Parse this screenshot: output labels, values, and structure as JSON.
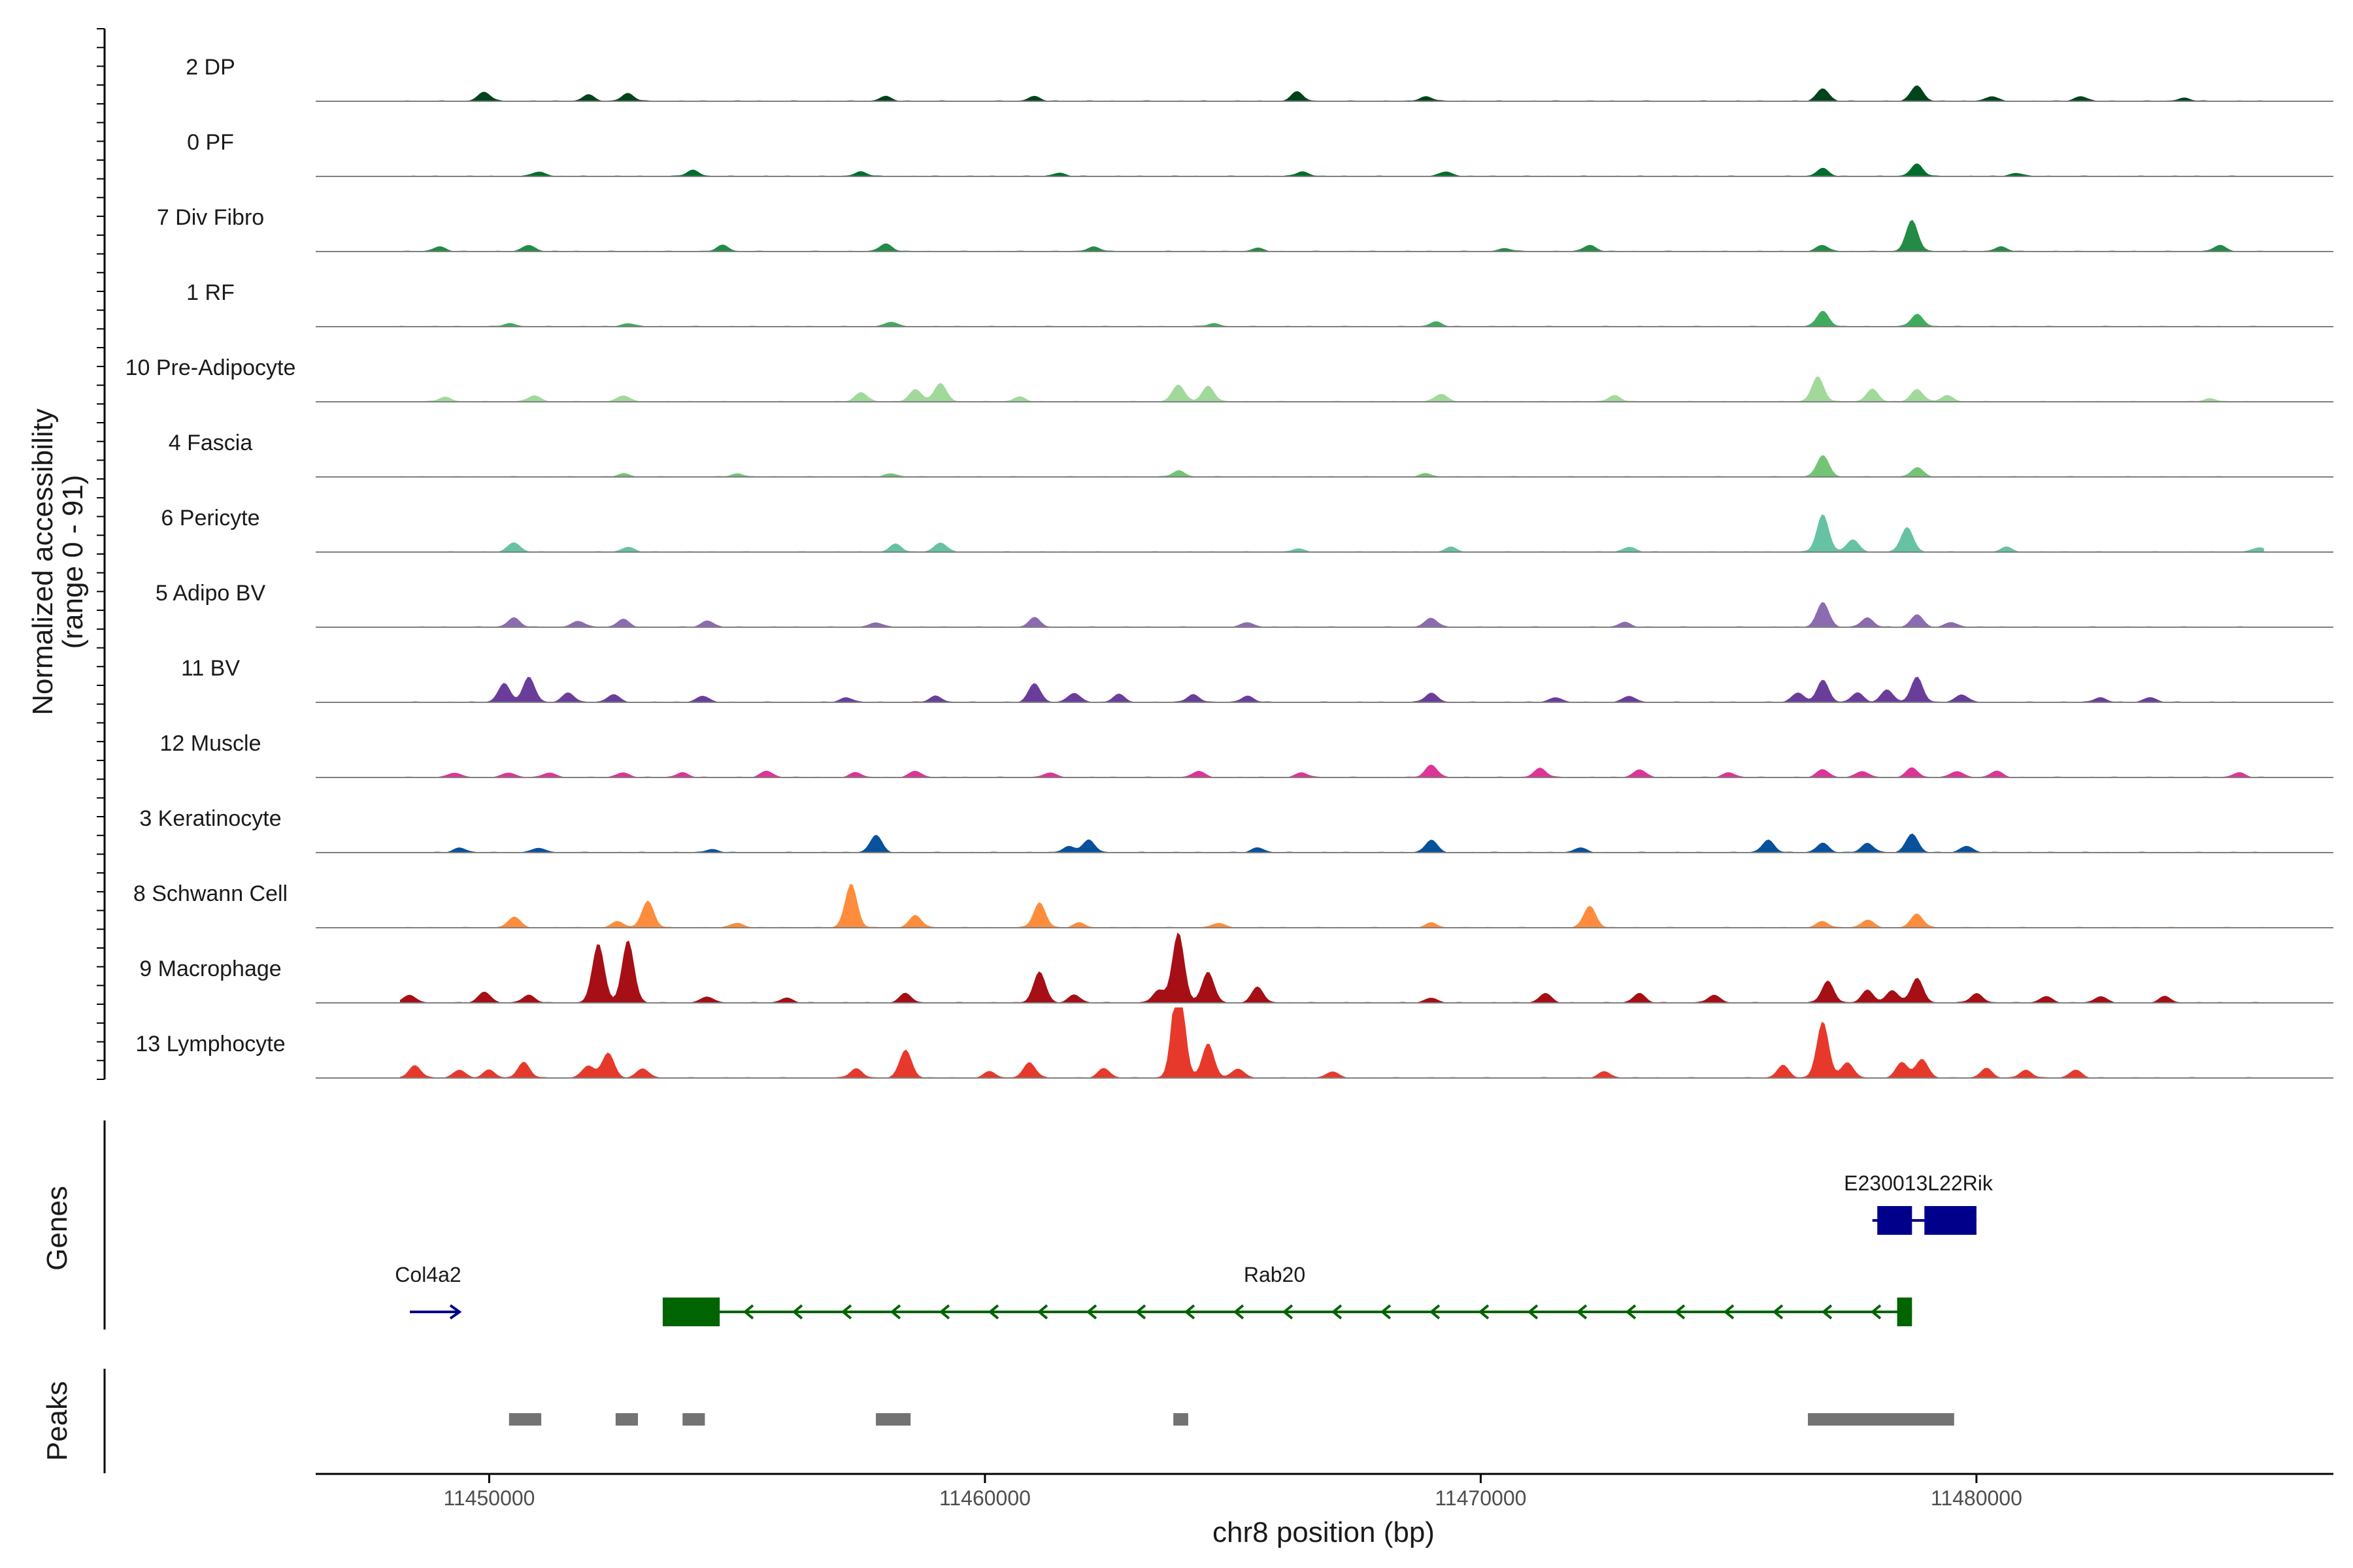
{
  "chart_data": {
    "type": "genome-track",
    "ylabel_line1": "Normalized accessibility",
    "ylabel_line2": "(range 0 - 91)",
    "y_range": [
      0,
      91
    ],
    "xlabel": "chr8 position (bp)",
    "xlim": [
      11446500,
      11487200
    ],
    "x_ticks": [
      11450000,
      11460000,
      11470000,
      11480000
    ],
    "x_tick_labels": [
      "11450000",
      "11460000",
      "11470000",
      "11480000"
    ],
    "tracks": [
      {
        "label": "2 DP",
        "color": "#00441b",
        "peaks": [
          [
            11449900,
            6
          ],
          [
            11452000,
            4
          ],
          [
            11452800,
            5
          ],
          [
            11458000,
            3
          ],
          [
            11461000,
            3
          ],
          [
            11466300,
            6
          ],
          [
            11468900,
            3
          ],
          [
            11476900,
            8
          ],
          [
            11478800,
            10
          ],
          [
            11480300,
            3
          ],
          [
            11482100,
            3
          ],
          [
            11484200,
            2
          ]
        ]
      },
      {
        "label": "0 PF",
        "color": "#006d2c",
        "peaks": [
          [
            11451000,
            3
          ],
          [
            11454100,
            4
          ],
          [
            11457500,
            3
          ],
          [
            11461500,
            2
          ],
          [
            11466400,
            3
          ],
          [
            11469300,
            3
          ],
          [
            11476900,
            5
          ],
          [
            11478800,
            8
          ],
          [
            11480800,
            2
          ]
        ]
      },
      {
        "label": "7 Div Fibro",
        "color": "#238b45",
        "peaks": [
          [
            11449000,
            3
          ],
          [
            11450800,
            4
          ],
          [
            11454700,
            4
          ],
          [
            11458000,
            5
          ],
          [
            11462200,
            3
          ],
          [
            11465500,
            2
          ],
          [
            11470500,
            2
          ],
          [
            11472200,
            4
          ],
          [
            11476900,
            4
          ],
          [
            11478700,
            20
          ],
          [
            11480500,
            3
          ],
          [
            11484900,
            4
          ]
        ]
      },
      {
        "label": "1 RF",
        "color": "#41ab5d",
        "peaks": [
          [
            11450400,
            2
          ],
          [
            11452800,
            2
          ],
          [
            11458100,
            3
          ],
          [
            11464600,
            2
          ],
          [
            11469100,
            3
          ],
          [
            11476900,
            10
          ],
          [
            11478800,
            8
          ]
        ]
      },
      {
        "label": "10 Pre-Adipocyte",
        "color": "#a1d99b",
        "peaks": [
          [
            11449100,
            3
          ],
          [
            11450900,
            4
          ],
          [
            11452700,
            4
          ],
          [
            11457500,
            6
          ],
          [
            11458600,
            8
          ],
          [
            11459100,
            12
          ],
          [
            11460700,
            3
          ],
          [
            11463900,
            11
          ],
          [
            11464500,
            10
          ],
          [
            11469200,
            5
          ],
          [
            11472700,
            4
          ],
          [
            11476800,
            16
          ],
          [
            11477900,
            8
          ],
          [
            11478800,
            8
          ],
          [
            11479400,
            4
          ],
          [
            11484700,
            2
          ]
        ]
      },
      {
        "label": "4 Fascia",
        "color": "#74c476",
        "peaks": [
          [
            11452700,
            2
          ],
          [
            11455000,
            2
          ],
          [
            11458100,
            2
          ],
          [
            11463900,
            4
          ],
          [
            11468900,
            2
          ],
          [
            11476900,
            14
          ],
          [
            11478800,
            6
          ]
        ]
      },
      {
        "label": "6 Pericyte",
        "color": "#66c2a4",
        "peaks": [
          [
            11450500,
            6
          ],
          [
            11452800,
            3
          ],
          [
            11458200,
            5
          ],
          [
            11459100,
            6
          ],
          [
            11466300,
            2
          ],
          [
            11469400,
            3
          ],
          [
            11473000,
            3
          ],
          [
            11476900,
            24
          ],
          [
            11477500,
            8
          ],
          [
            11478600,
            16
          ],
          [
            11480600,
            3
          ],
          [
            11485700,
            3
          ]
        ]
      },
      {
        "label": "5 Adipo BV",
        "color": "#8c6bb1",
        "peaks": [
          [
            11450500,
            6
          ],
          [
            11451800,
            4
          ],
          [
            11452700,
            5
          ],
          [
            11454400,
            4
          ],
          [
            11457800,
            3
          ],
          [
            11461000,
            6
          ],
          [
            11465300,
            3
          ],
          [
            11469000,
            6
          ],
          [
            11472900,
            3
          ],
          [
            11476900,
            16
          ],
          [
            11477800,
            6
          ],
          [
            11478800,
            8
          ],
          [
            11479500,
            3
          ]
        ]
      },
      {
        "label": "11 BV",
        "color": "#6a3d9a",
        "peaks": [
          [
            11450300,
            12
          ],
          [
            11450800,
            16
          ],
          [
            11451600,
            6
          ],
          [
            11452500,
            5
          ],
          [
            11454300,
            4
          ],
          [
            11457200,
            3
          ],
          [
            11459000,
            4
          ],
          [
            11461000,
            12
          ],
          [
            11461800,
            6
          ],
          [
            11462700,
            5
          ],
          [
            11464200,
            5
          ],
          [
            11465300,
            4
          ],
          [
            11469000,
            6
          ],
          [
            11471500,
            3
          ],
          [
            11473000,
            4
          ],
          [
            11476400,
            6
          ],
          [
            11476900,
            14
          ],
          [
            11477600,
            6
          ],
          [
            11478200,
            8
          ],
          [
            11478800,
            16
          ],
          [
            11479700,
            5
          ],
          [
            11482500,
            3
          ],
          [
            11483500,
            3
          ]
        ]
      },
      {
        "label": "12 Muscle",
        "color": "#dd3497",
        "peaks": [
          [
            11449300,
            3
          ],
          [
            11450400,
            3
          ],
          [
            11451200,
            3
          ],
          [
            11452700,
            3
          ],
          [
            11453900,
            3
          ],
          [
            11455600,
            4
          ],
          [
            11457400,
            3
          ],
          [
            11458600,
            4
          ],
          [
            11461300,
            3
          ],
          [
            11464300,
            4
          ],
          [
            11466400,
            3
          ],
          [
            11469000,
            8
          ],
          [
            11471200,
            6
          ],
          [
            11473200,
            5
          ],
          [
            11475000,
            3
          ],
          [
            11476900,
            5
          ],
          [
            11477700,
            4
          ],
          [
            11478700,
            6
          ],
          [
            11479600,
            4
          ],
          [
            11480400,
            4
          ],
          [
            11485300,
            3
          ]
        ]
      },
      {
        "label": "3 Keratinocyte",
        "color": "#08519c",
        "peaks": [
          [
            11449400,
            3
          ],
          [
            11451000,
            3
          ],
          [
            11454500,
            2
          ],
          [
            11457800,
            11
          ],
          [
            11461700,
            4
          ],
          [
            11462100,
            8
          ],
          [
            11465500,
            3
          ],
          [
            11469000,
            8
          ],
          [
            11472000,
            3
          ],
          [
            11475800,
            8
          ],
          [
            11476900,
            6
          ],
          [
            11477800,
            6
          ],
          [
            11478700,
            12
          ],
          [
            11479800,
            4
          ]
        ]
      },
      {
        "label": "8 Schwann Cell",
        "color": "#fd8d3c",
        "peaks": [
          [
            11450500,
            7
          ],
          [
            11452600,
            4
          ],
          [
            11453200,
            17
          ],
          [
            11455000,
            3
          ],
          [
            11457300,
            28
          ],
          [
            11458600,
            8
          ],
          [
            11461100,
            16
          ],
          [
            11461900,
            3
          ],
          [
            11464700,
            3
          ],
          [
            11469000,
            3
          ],
          [
            11472200,
            14
          ],
          [
            11476900,
            4
          ],
          [
            11477800,
            5
          ],
          [
            11478800,
            9
          ]
        ]
      },
      {
        "label": "9 Macrophage",
        "color": "#a50f15",
        "peaks": [
          [
            11448400,
            5
          ],
          [
            11449900,
            7
          ],
          [
            11450800,
            5
          ],
          [
            11452200,
            38
          ],
          [
            11452800,
            40
          ],
          [
            11454400,
            4
          ],
          [
            11456000,
            3
          ],
          [
            11458400,
            6
          ],
          [
            11461100,
            20
          ],
          [
            11461800,
            5
          ],
          [
            11463500,
            8
          ],
          [
            11463900,
            45
          ],
          [
            11464500,
            20
          ],
          [
            11465500,
            10
          ],
          [
            11469000,
            3
          ],
          [
            11471300,
            6
          ],
          [
            11473200,
            6
          ],
          [
            11474700,
            5
          ],
          [
            11477000,
            14
          ],
          [
            11477800,
            8
          ],
          [
            11478300,
            8
          ],
          [
            11478800,
            16
          ],
          [
            11480000,
            6
          ],
          [
            11481400,
            4
          ],
          [
            11482500,
            4
          ],
          [
            11483800,
            4
          ]
        ]
      },
      {
        "label": "13 Lymphocyte",
        "color": "#e7392b",
        "peaks": [
          [
            11448500,
            8
          ],
          [
            11449400,
            5
          ],
          [
            11450000,
            5
          ],
          [
            11450700,
            10
          ],
          [
            11452000,
            8
          ],
          [
            11452400,
            16
          ],
          [
            11453100,
            6
          ],
          [
            11457400,
            6
          ],
          [
            11458400,
            18
          ],
          [
            11460100,
            4
          ],
          [
            11460900,
            10
          ],
          [
            11462400,
            6
          ],
          [
            11463900,
            68
          ],
          [
            11464500,
            22
          ],
          [
            11465100,
            6
          ],
          [
            11467000,
            4
          ],
          [
            11472500,
            4
          ],
          [
            11476100,
            8
          ],
          [
            11476900,
            36
          ],
          [
            11477400,
            10
          ],
          [
            11478500,
            10
          ],
          [
            11478900,
            12
          ],
          [
            11480200,
            6
          ],
          [
            11481000,
            5
          ],
          [
            11482000,
            5
          ]
        ]
      }
    ],
    "genes_label": "Genes",
    "genes": [
      {
        "name": "Col4a2",
        "strand": "+",
        "color": "#00008b",
        "start": 11448400,
        "end": 11449400,
        "exons": []
      },
      {
        "name": "Rab20",
        "strand": "-",
        "color": "#006400",
        "start": 11453500,
        "end": 11478700,
        "exons": [
          [
            11453500,
            11454650
          ],
          [
            11478400,
            11478700
          ]
        ]
      },
      {
        "name": "E230013L22Rik",
        "strand": "+",
        "color": "#00008b",
        "start": 11477900,
        "end": 11480000,
        "exons": [
          [
            11478000,
            11478700
          ],
          [
            11478950,
            11480000
          ]
        ]
      }
    ],
    "peaks_label": "Peaks",
    "peak_regions": [
      [
        11450400,
        11451050
      ],
      [
        11452550,
        11453000
      ],
      [
        11453900,
        11454350
      ],
      [
        11457800,
        11458500
      ],
      [
        11463800,
        11464100
      ],
      [
        11476600,
        11479550
      ]
    ]
  }
}
